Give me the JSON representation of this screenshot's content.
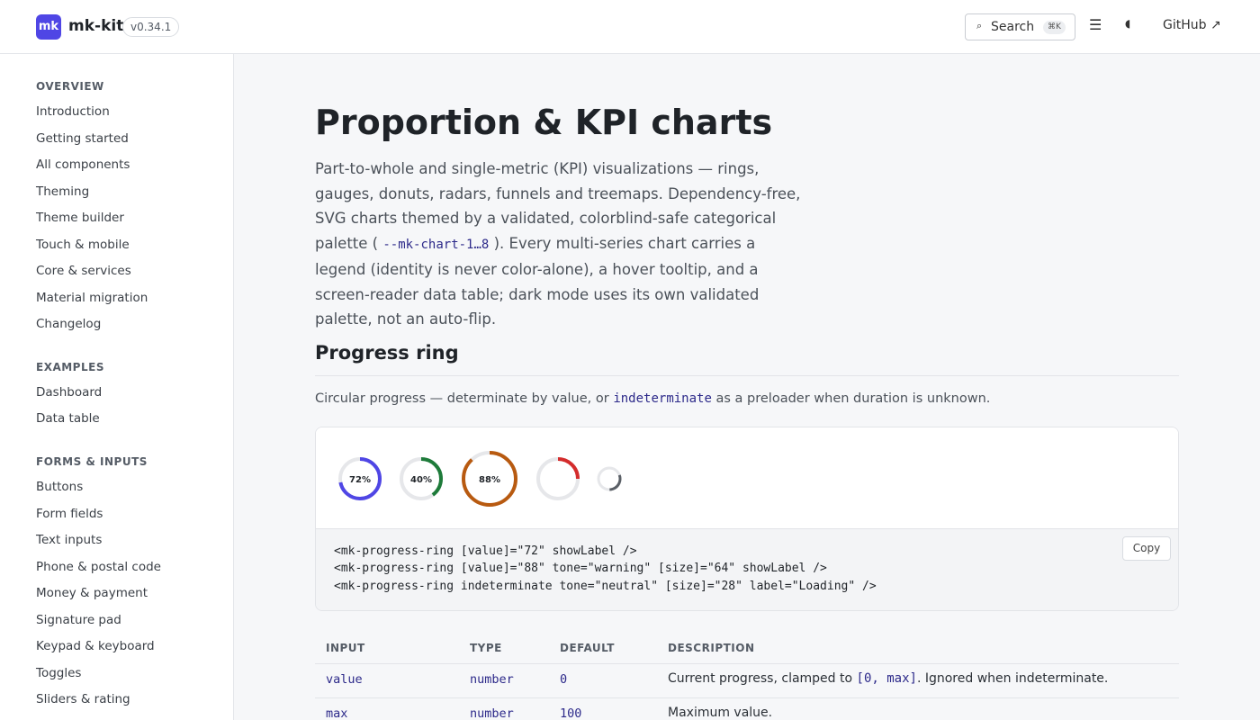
{
  "header": {
    "logo_text": "mk",
    "brand": "mk-kit",
    "version": "v0.34.1",
    "search_label": "Search",
    "search_shortcut": "⌘K",
    "github_label": "GitHub ↗"
  },
  "sidebar": {
    "sections": [
      {
        "title": "OVERVIEW",
        "items": [
          "Introduction",
          "Getting started",
          "All components",
          "Theming",
          "Theme builder",
          "Touch & mobile",
          "Core & services",
          "Material migration",
          "Changelog"
        ]
      },
      {
        "title": "EXAMPLES",
        "items": [
          "Dashboard",
          "Data table"
        ]
      },
      {
        "title": "FORMS & INPUTS",
        "items": [
          "Buttons",
          "Form fields",
          "Text inputs",
          "Phone & postal code",
          "Money & payment",
          "Signature pad",
          "Keypad & keyboard",
          "Toggles",
          "Sliders & rating"
        ]
      }
    ]
  },
  "main": {
    "title": "Proportion & KPI charts",
    "intro_a": "Part-to-whole and single-metric (KPI) visualizations — rings, gauges, donuts, radars, funnels and treemaps. Dependency-free, SVG charts themed by a validated, colorblind-safe categorical palette ( ",
    "intro_code": "--mk-chart-1…8",
    "intro_b": " ). Every multi-series chart carries a legend (identity is never color-alone), a hover tooltip, and a screen-reader data table; dark mode uses its own validated palette, not an auto-flip.",
    "section_title": "Progress ring",
    "section_desc_a": "Circular progress — determinate by value, or ",
    "section_desc_code": "indeterminate",
    "section_desc_b": " as a preloader when duration is unknown.",
    "rings": [
      {
        "value": 0.72,
        "label": "72%",
        "color": "#4f46e5"
      },
      {
        "value": 0.4,
        "label": "40%",
        "color": "#1e7b3a"
      },
      {
        "value": 0.88,
        "label": "88%",
        "color": "#b85a10"
      },
      {
        "value": 0.25,
        "label": "",
        "color": "#d42c2c"
      },
      {
        "value": 0.3,
        "label": "",
        "color": "#5a5f66"
      }
    ],
    "code_lines": [
      "<mk-progress-ring [value]=\"72\" showLabel />",
      "<mk-progress-ring [value]=\"88\" tone=\"warning\" [size]=\"64\" showLabel />",
      "<mk-progress-ring indeterminate tone=\"neutral\" [size]=\"28\" label=\"Loading\" />"
    ],
    "copy_label": "Copy",
    "table": {
      "headers": [
        "INPUT",
        "TYPE",
        "DEFAULT",
        "DESCRIPTION"
      ],
      "rows": [
        {
          "input": "value",
          "type": "number",
          "default": "0",
          "desc_a": "Current progress, clamped to ",
          "desc_code": "[0, max]",
          "desc_b": ". Ignored when indeterminate."
        },
        {
          "input": "max",
          "type": "number",
          "default": "100",
          "desc_a": "Maximum value.",
          "desc_code": "",
          "desc_b": ""
        }
      ]
    }
  }
}
